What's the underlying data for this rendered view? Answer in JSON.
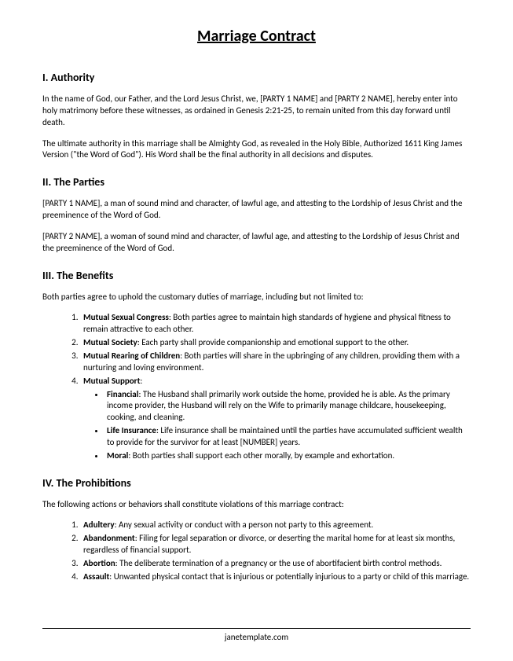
{
  "title": "Marriage Contract",
  "section1": {
    "heading": "I. Authority",
    "p1": "In the name of God, our Father, and the Lord Jesus Christ, we, [PARTY 1 NAME] and [PARTY 2 NAME], hereby enter into holy matrimony before these witnesses, as ordained in Genesis 2:21-25, to remain united from this day forward until death.",
    "p2": "The ultimate authority in this marriage shall be Almighty God, as revealed in the Holy Bible, Authorized 1611 King James Version (\"the Word of God\"). His Word shall be the final authority in all decisions and disputes."
  },
  "section2": {
    "heading": "II. The Parties",
    "p1": "[PARTY 1 NAME], a man of sound mind and character, of lawful age, and attesting to the Lordship of Jesus Christ and the preeminence of the Word of God.",
    "p2": "[PARTY 2 NAME], a woman of sound mind and character, of lawful age, and attesting to the Lordship of Jesus Christ and the preeminence of the Word of God."
  },
  "section3": {
    "heading": "III. The Benefits",
    "intro": "Both parties agree to uphold the customary duties of marriage, including but not limited to:",
    "items": [
      {
        "term": "Mutual Sexual Congress",
        "desc": ": Both parties agree to maintain high standards of hygiene and physical fitness to remain attractive to each other."
      },
      {
        "term": "Mutual Society",
        "desc": ": Each party shall provide companionship and emotional support to the other."
      },
      {
        "term": "Mutual Rearing of Children",
        "desc": ": Both parties will share in the upbringing of any children, providing them with a nurturing and loving environment."
      },
      {
        "term": "Mutual Support",
        "desc": ":"
      }
    ],
    "subitems": [
      {
        "term": "Financial",
        "desc": ": The Husband shall primarily work outside the home, provided he is able. As the primary income provider, the Husband will rely on the Wife to primarily manage childcare, housekeeping, cooking, and cleaning."
      },
      {
        "term": "Life Insurance",
        "desc": ": Life insurance shall be maintained until the parties have accumulated sufficient wealth to provide for the survivor for at least [NUMBER] years."
      },
      {
        "term": "Moral",
        "desc": ": Both parties shall support each other morally, by example and exhortation."
      }
    ]
  },
  "section4": {
    "heading": "IV. The Prohibitions",
    "intro": "The following actions or behaviors shall constitute violations of this marriage contract:",
    "items": [
      {
        "term": "Adultery",
        "desc": ": Any sexual activity or conduct with a person not party to this agreement."
      },
      {
        "term": "Abandonment",
        "desc": ": Filing for legal separation or divorce, or deserting the marital home for at least six months, regardless of financial support."
      },
      {
        "term": "Abortion",
        "desc": ": The deliberate termination of a pregnancy or the use of abortifacient birth control methods."
      },
      {
        "term": "Assault",
        "desc": ": Unwanted physical contact that is injurious or potentially injurious to a party or child of this marriage."
      }
    ]
  },
  "footer": "janetemplate.com"
}
